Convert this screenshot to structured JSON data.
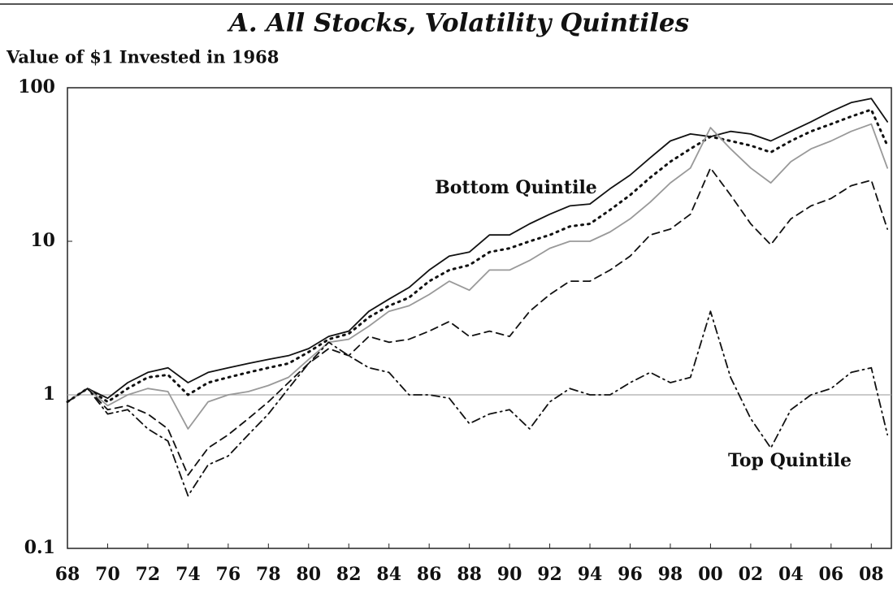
{
  "chart_data": {
    "type": "line",
    "title": "A. All Stocks, Volatility Quintiles",
    "subtitle": "Value of $1 Invested in 1968",
    "log_scale": true,
    "reference_line": 1,
    "x": [
      1968,
      1969,
      1970,
      1971,
      1972,
      1973,
      1974,
      1975,
      1976,
      1977,
      1978,
      1979,
      1980,
      1981,
      1982,
      1983,
      1984,
      1985,
      1986,
      1987,
      1988,
      1989,
      1990,
      1991,
      1992,
      1993,
      1994,
      1995,
      1996,
      1997,
      1998,
      1999,
      2000,
      2001,
      2002,
      2003,
      2004,
      2005,
      2006,
      2007,
      2008,
      2008.8
    ],
    "series": [
      {
        "color": "#111111",
        "dash": "solid",
        "values": [
          0.9,
          1.1,
          0.95,
          1.2,
          1.4,
          1.5,
          1.2,
          1.4,
          1.5,
          1.6,
          1.7,
          1.8,
          2.0,
          2.4,
          2.6,
          3.5,
          4.2,
          5.0,
          6.5,
          8.0,
          8.5,
          11,
          11,
          13,
          15,
          17,
          17.5,
          22,
          27,
          35,
          45,
          50,
          48,
          52,
          50,
          45,
          52,
          60,
          70,
          80,
          85,
          60
        ]
      },
      {
        "color": "#111111",
        "dash": "dotted",
        "values": [
          0.9,
          1.1,
          0.9,
          1.1,
          1.3,
          1.35,
          1.0,
          1.2,
          1.3,
          1.4,
          1.5,
          1.6,
          1.9,
          2.3,
          2.5,
          3.2,
          3.8,
          4.3,
          5.5,
          6.5,
          7,
          8.5,
          9,
          10,
          11,
          12.5,
          13,
          16,
          20,
          26,
          33,
          40,
          48,
          45,
          42,
          38,
          45,
          52,
          58,
          65,
          72,
          42
        ]
      },
      {
        "color": "#999999",
        "dash": "solid",
        "values": [
          0.9,
          1.1,
          0.85,
          1.0,
          1.1,
          1.05,
          0.6,
          0.9,
          1.0,
          1.05,
          1.15,
          1.3,
          1.7,
          2.2,
          2.3,
          2.8,
          3.5,
          3.8,
          4.5,
          5.5,
          4.8,
          6.5,
          6.5,
          7.5,
          9,
          10,
          10,
          11.5,
          14,
          18,
          24,
          30,
          55,
          40,
          30,
          24,
          33,
          40,
          45,
          52,
          58,
          30
        ]
      },
      {
        "color": "#111111",
        "dash": "dashed",
        "values": [
          0.9,
          1.1,
          0.8,
          0.85,
          0.75,
          0.6,
          0.3,
          0.45,
          0.55,
          0.7,
          0.9,
          1.2,
          1.6,
          2.0,
          1.8,
          2.4,
          2.2,
          2.3,
          2.6,
          3.0,
          2.4,
          2.6,
          2.4,
          3.5,
          4.5,
          5.5,
          5.5,
          6.5,
          8,
          11,
          12,
          15,
          30,
          20,
          13,
          9.5,
          14,
          17,
          19,
          23,
          25,
          12
        ]
      },
      {
        "color": "#111111",
        "dash": "dashdot",
        "values": [
          0.9,
          1.1,
          0.75,
          0.8,
          0.6,
          0.5,
          0.22,
          0.35,
          0.4,
          0.55,
          0.75,
          1.1,
          1.6,
          2.2,
          1.8,
          1.5,
          1.4,
          1.0,
          1.0,
          0.95,
          0.65,
          0.75,
          0.8,
          0.6,
          0.9,
          1.1,
          1.0,
          1.0,
          1.2,
          1.4,
          1.2,
          1.3,
          3.5,
          1.3,
          0.7,
          0.45,
          0.8,
          1.0,
          1.1,
          1.4,
          1.5,
          0.55
        ]
      }
    ],
    "annotations": [
      "Bottom Quintile",
      "Top Quintile"
    ],
    "xlim": [
      1968,
      2009
    ],
    "xticks": [
      {
        "value": 1968,
        "label": "68"
      },
      {
        "value": 1970,
        "label": "70"
      },
      {
        "value": 1972,
        "label": "72"
      },
      {
        "value": 1974,
        "label": "74"
      },
      {
        "value": 1976,
        "label": "76"
      },
      {
        "value": 1978,
        "label": "78"
      },
      {
        "value": 1980,
        "label": "80"
      },
      {
        "value": 1982,
        "label": "82"
      },
      {
        "value": 1984,
        "label": "84"
      },
      {
        "value": 1986,
        "label": "86"
      },
      {
        "value": 1988,
        "label": "88"
      },
      {
        "value": 1990,
        "label": "90"
      },
      {
        "value": 1992,
        "label": "92"
      },
      {
        "value": 1994,
        "label": "94"
      },
      {
        "value": 1996,
        "label": "96"
      },
      {
        "value": 1998,
        "label": "98"
      },
      {
        "value": 2000,
        "label": "00"
      },
      {
        "value": 2002,
        "label": "02"
      },
      {
        "value": 2004,
        "label": "04"
      },
      {
        "value": 2006,
        "label": "06"
      },
      {
        "value": 2008,
        "label": "08"
      }
    ],
    "ylim": [
      0.1,
      100
    ],
    "yticks": [
      0.1,
      1,
      10,
      100
    ]
  }
}
